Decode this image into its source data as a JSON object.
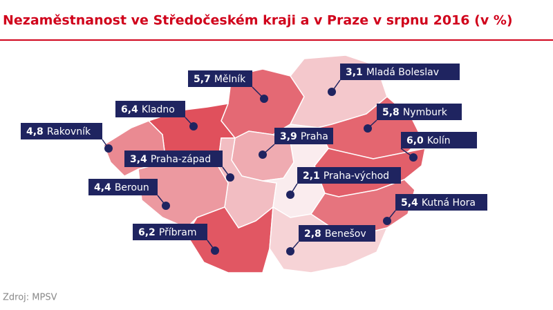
{
  "title": "Nezaměstnanost ve Středočeském kraji a v Praze v srpnu 2016 (v %)",
  "source": "Zdroj: MPSV",
  "regions": [
    {
      "name": "Mělník",
      "value": 5.7,
      "value_label": "5,7"
    },
    {
      "name": "Mladá Boleslav",
      "value": 3.1,
      "value_label": "3,1"
    },
    {
      "name": "Kladno",
      "value": 6.4,
      "value_label": "6,4"
    },
    {
      "name": "Nymburk",
      "value": 5.8,
      "value_label": "5,8"
    },
    {
      "name": "Rakovník",
      "value": 4.8,
      "value_label": "4,8"
    },
    {
      "name": "Praha",
      "value": 3.9,
      "value_label": "3,9"
    },
    {
      "name": "Kolín",
      "value": 6.0,
      "value_label": "6,0"
    },
    {
      "name": "Praha-západ",
      "value": 3.4,
      "value_label": "3,4"
    },
    {
      "name": "Praha-východ",
      "value": 2.1,
      "value_label": "2,1"
    },
    {
      "name": "Beroun",
      "value": 4.4,
      "value_label": "4,4"
    },
    {
      "name": "Kutná Hora",
      "value": 5.4,
      "value_label": "5,4"
    },
    {
      "name": "Příbram",
      "value": 6.2,
      "value_label": "6,2"
    },
    {
      "name": "Benešov",
      "value": 2.8,
      "value_label": "2,8"
    }
  ]
}
